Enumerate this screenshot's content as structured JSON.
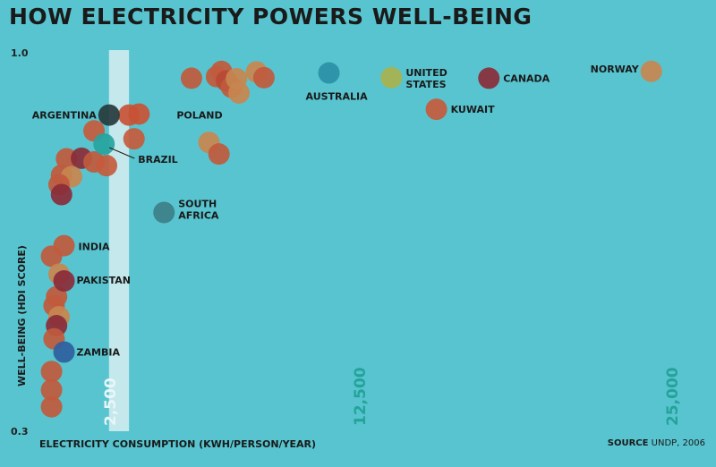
{
  "chart_data": {
    "type": "scatter",
    "title": "HOW ELECTRICITY POWERS WELL-BEING",
    "xlabel": "ELECTRICITY CONSUMPTION (KWH/PERSON/YEAR)",
    "ylabel": "WELL-BEING (HDI SCORE)",
    "y_ticks": [
      "1.0",
      "0.3"
    ],
    "ylim": [
      0.3,
      1.0
    ],
    "xlim": [
      0,
      26000
    ],
    "x_ticks": [
      {
        "value": 2500,
        "label": "2,500"
      },
      {
        "value": 12500,
        "label": "12,500"
      },
      {
        "value": 25000,
        "label": "25,000"
      }
    ],
    "highlight_band": [
      2500,
      3300
    ],
    "source_label": "SOURCE",
    "source_text": "UNDP, 2006",
    "points": [
      {
        "label": "AUSTRALIA",
        "x": 11300,
        "y": 0.96,
        "color": "#2a8fa6"
      },
      {
        "label": "UNITED STATES",
        "x": 13800,
        "y": 0.951,
        "color": "#a9b24e"
      },
      {
        "label": "CANADA",
        "x": 17700,
        "y": 0.95,
        "color": "#8a2b3a"
      },
      {
        "label": "NORWAY",
        "x": 24200,
        "y": 0.963,
        "color": "#c7864f"
      },
      {
        "label": "KUWAIT",
        "x": 15600,
        "y": 0.891,
        "color": "#c65a3c"
      },
      {
        "label": "ARGENTINA",
        "x": 2500,
        "y": 0.88,
        "color": "#263a3c"
      },
      {
        "label": "POLAND",
        "x": 3700,
        "y": 0.882,
        "color": "#c85236"
      },
      {
        "label": "BRAZIL",
        "x": 2300,
        "y": 0.825,
        "color": "#26a3a0"
      },
      {
        "label": "SOUTH AFRICA",
        "x": 4700,
        "y": 0.695,
        "color": "#3c7f88"
      },
      {
        "label": "INDIA",
        "x": 700,
        "y": 0.632,
        "color": "#c05a3d"
      },
      {
        "label": "PAKISTAN",
        "x": 700,
        "y": 0.565,
        "color": "#8a2b3a"
      },
      {
        "label": "ZAMBIA",
        "x": 700,
        "y": 0.43,
        "color": "#2e5f9e"
      },
      {
        "x": 5800,
        "y": 0.95,
        "color": "#c05a3d"
      },
      {
        "x": 6800,
        "y": 0.953,
        "color": "#c05a3d"
      },
      {
        "x": 7000,
        "y": 0.963,
        "color": "#c05a3d"
      },
      {
        "x": 7200,
        "y": 0.945,
        "color": "#b84a35"
      },
      {
        "x": 7400,
        "y": 0.933,
        "color": "#c05a3d"
      },
      {
        "x": 7600,
        "y": 0.949,
        "color": "#c7864f"
      },
      {
        "x": 7700,
        "y": 0.922,
        "color": "#c7864f"
      },
      {
        "x": 8400,
        "y": 0.962,
        "color": "#c7864f"
      },
      {
        "x": 8700,
        "y": 0.951,
        "color": "#c05a3d"
      },
      {
        "x": 1900,
        "y": 0.85,
        "color": "#c65a3c"
      },
      {
        "x": 3300,
        "y": 0.88,
        "color": "#c85236"
      },
      {
        "x": 3500,
        "y": 0.835,
        "color": "#c65a3c"
      },
      {
        "x": 6500,
        "y": 0.828,
        "color": "#c7864f"
      },
      {
        "x": 6900,
        "y": 0.806,
        "color": "#c05a3d"
      },
      {
        "x": 800,
        "y": 0.797,
        "color": "#c05a3d"
      },
      {
        "x": 1400,
        "y": 0.798,
        "color": "#8a2b3a"
      },
      {
        "x": 1900,
        "y": 0.791,
        "color": "#c05a3d"
      },
      {
        "x": 2400,
        "y": 0.784,
        "color": "#c65a3c"
      },
      {
        "x": 600,
        "y": 0.766,
        "color": "#c05a3d"
      },
      {
        "x": 1000,
        "y": 0.763,
        "color": "#c7864f"
      },
      {
        "x": 500,
        "y": 0.748,
        "color": "#c05a3d"
      },
      {
        "x": 600,
        "y": 0.729,
        "color": "#8a2b3a"
      },
      {
        "x": 200,
        "y": 0.612,
        "color": "#c05a3d"
      },
      {
        "x": 500,
        "y": 0.578,
        "color": "#c7864f"
      },
      {
        "x": 400,
        "y": 0.535,
        "color": "#c05a3d"
      },
      {
        "x": 300,
        "y": 0.518,
        "color": "#c05a3d"
      },
      {
        "x": 500,
        "y": 0.497,
        "color": "#c7864f"
      },
      {
        "x": 400,
        "y": 0.48,
        "color": "#8a2b3a"
      },
      {
        "x": 300,
        "y": 0.455,
        "color": "#c05a3d"
      },
      {
        "x": 200,
        "y": 0.393,
        "color": "#c05a3d"
      },
      {
        "x": 200,
        "y": 0.358,
        "color": "#c05a3d"
      },
      {
        "x": 200,
        "y": 0.326,
        "color": "#c05a3d"
      }
    ]
  }
}
